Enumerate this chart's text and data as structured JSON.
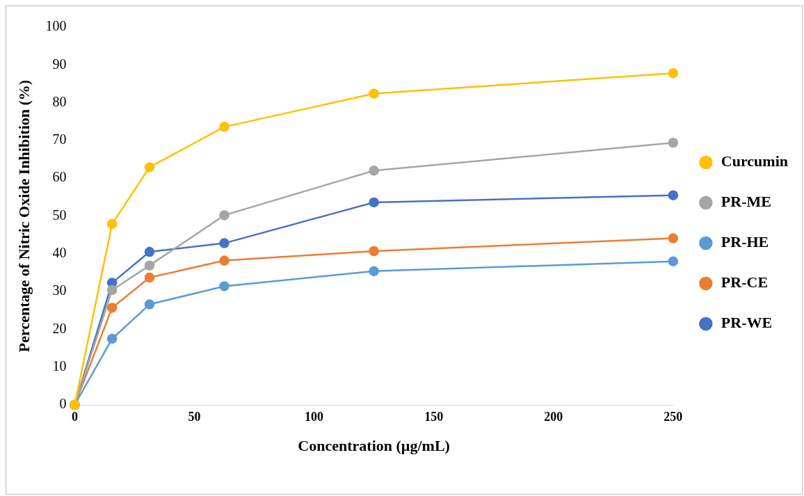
{
  "chart_data": {
    "type": "line",
    "xlabel": "Concentration (µg/mL)",
    "ylabel": "Percentage of Nitric Oxide Inhibition (%)",
    "x": [
      0,
      15.625,
      31.25,
      62.5,
      125,
      250
    ],
    "xlim": [
      0,
      250
    ],
    "xticks": [
      0,
      50,
      100,
      150,
      200,
      250
    ],
    "ylim": [
      0,
      100
    ],
    "yticks": [
      0,
      10,
      20,
      30,
      40,
      50,
      60,
      70,
      80,
      90,
      100
    ],
    "grid": false,
    "legend": "right",
    "marker": "circle",
    "line_style": "solid",
    "series": [
      {
        "name": "Curcumin",
        "color": "#ffc000",
        "values": [
          0,
          47.9,
          62.9,
          73.6,
          82.4,
          87.8
        ]
      },
      {
        "name": "PR-ME",
        "color": "#a5a5a5",
        "values": [
          0,
          30.4,
          36.9,
          50.2,
          62.0,
          69.4
        ]
      },
      {
        "name": "PR-HE",
        "color": "#5b9bd5",
        "values": [
          0,
          17.5,
          26.6,
          31.4,
          35.4,
          38.0
        ]
      },
      {
        "name": "PR-CE",
        "color": "#ed7d31",
        "values": [
          0,
          25.7,
          33.7,
          38.2,
          40.7,
          44.1
        ]
      },
      {
        "name": "PR-WE",
        "color": "#4472c4",
        "values": [
          0,
          32.3,
          40.5,
          42.8,
          53.6,
          55.5
        ]
      }
    ]
  }
}
